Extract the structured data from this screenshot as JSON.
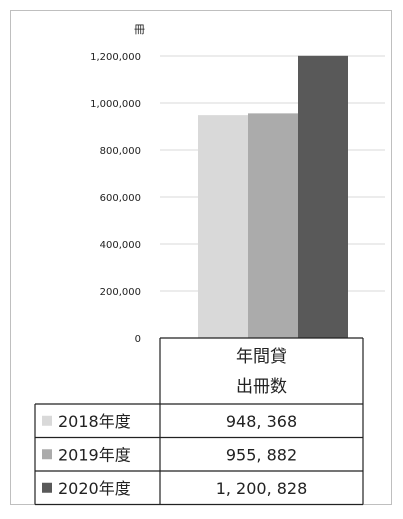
{
  "chart_data": {
    "type": "bar",
    "y_unit_label": "冊",
    "y_ticks": [
      "1,200,000",
      "1,000,000",
      "800,000",
      "600,000",
      "400,000",
      "200,000",
      "0"
    ],
    "ylim": [
      0,
      1200000
    ],
    "grid": true,
    "category": "年間貸出冊数",
    "category_lines": [
      "年間貸",
      "出冊数"
    ],
    "series": [
      {
        "name": "2018年度",
        "value": 948368,
        "display": "948, 368",
        "color": "#d9d9d9"
      },
      {
        "name": "2019年度",
        "value": 955882,
        "display": "955, 882",
        "color": "#ababab"
      },
      {
        "name": "2020年度",
        "value": 1200828,
        "display": "1, 200, 828",
        "color": "#595959"
      }
    ],
    "legend_position": "bottom-table"
  }
}
